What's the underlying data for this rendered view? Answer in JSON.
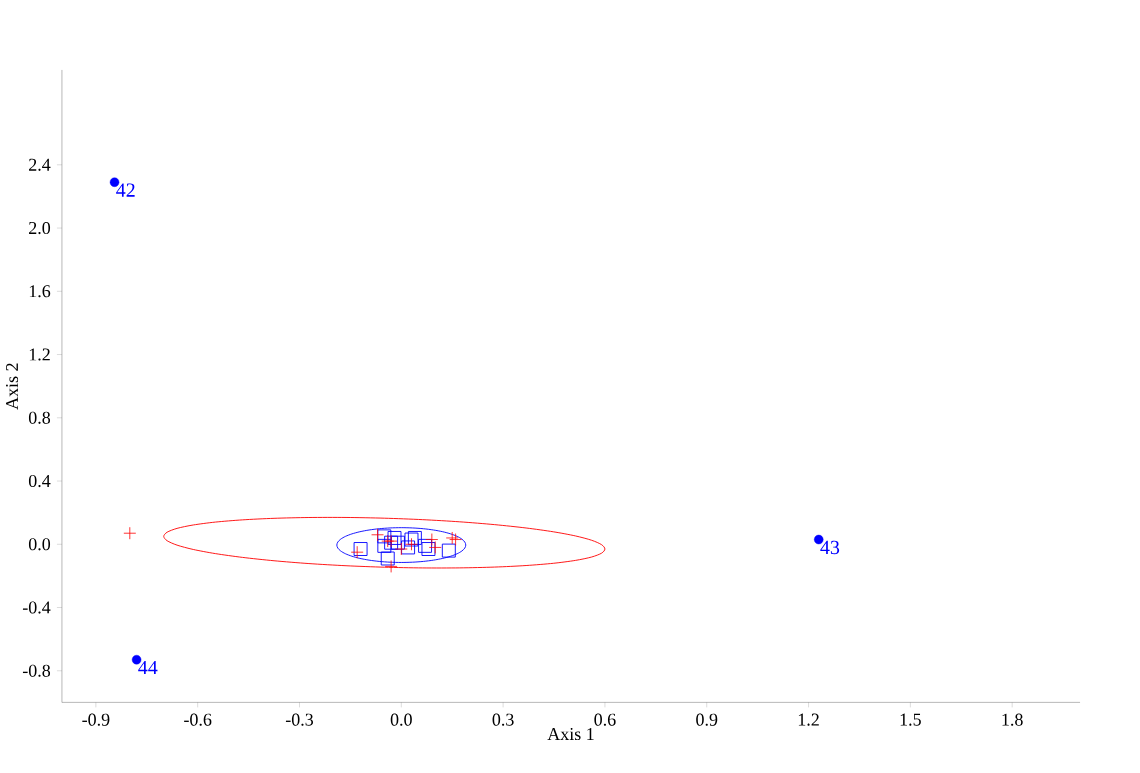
{
  "chart_data": {
    "type": "scatter",
    "xlabel": "Axis 1",
    "ylabel": "Axis 2",
    "xlim": [
      -1.0,
      2.0
    ],
    "ylim": [
      -1.0,
      3.0
    ],
    "xticks": [
      -0.9,
      -0.6,
      -0.3,
      {
        "value": 0,
        "label": "0.0"
      },
      0.3,
      0.6,
      0.9,
      1.2,
      1.5,
      1.8
    ],
    "yticks": [
      -0.8,
      -0.4,
      {
        "value": 0,
        "label": "0.0"
      },
      0.4,
      0.8,
      1.2,
      1.6,
      {
        "value": 2,
        "label": "2.0"
      },
      2.4
    ],
    "grid": false,
    "series": [
      {
        "color": "#0000ff",
        "marker": "square",
        "x": [
          -0.12,
          -0.05,
          -0.05,
          -0.04,
          -0.02,
          -0.03,
          -0.01,
          0.02,
          0.03,
          0.04,
          0.07,
          0.08,
          0.14
        ],
        "values": [
          -0.03,
          0.05,
          -0.01,
          -0.09,
          0.04,
          0.01,
          0.01,
          -0.02,
          0.03,
          0.04,
          -0.01,
          -0.03,
          -0.04
        ]
      },
      {
        "color": "#ff0000",
        "marker": "cross",
        "x": [
          -0.8,
          -0.07,
          -0.03,
          0.0,
          0.03,
          0.09,
          0.1,
          0.15,
          0.16,
          -0.13,
          -0.03,
          -0.04
        ],
        "values": [
          0.07,
          0.06,
          0.02,
          -0.03,
          0.0,
          0.03,
          -0.02,
          0.04,
          0.03,
          -0.05,
          -0.14,
          0.02
        ]
      },
      {
        "color": "#0000ff",
        "marker": "circle",
        "x": [
          -0.845,
          1.23,
          -0.78
        ],
        "values": [
          2.29,
          0.03,
          -0.73
        ]
      }
    ],
    "annotations": [
      {
        "text": "42",
        "x": -0.845,
        "y": 2.29
      },
      {
        "text": "43",
        "x": 1.23,
        "y": 0.03
      },
      {
        "text": "44",
        "x": -0.78,
        "y": -0.73
      }
    ]
  }
}
